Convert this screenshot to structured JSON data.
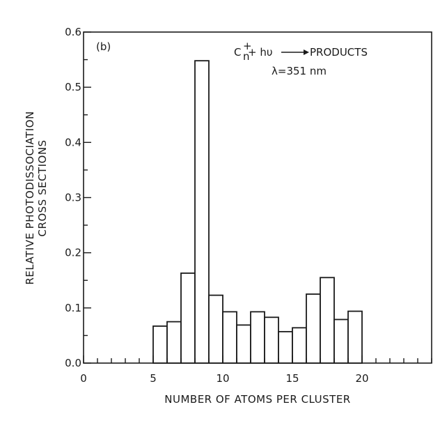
{
  "chart_data": {
    "type": "bar",
    "panel_label": "(b)",
    "xlabel": "NUMBER OF ATOMS PER CLUSTER",
    "ylabel_line1": "RELATIVE PHOTODISSOCIATION",
    "ylabel_line2": "CROSS SECTIONS",
    "annotation_reaction": "Cₙ⁺ + hυ → PRODUCTS",
    "annotation_reaction_lhs": "C",
    "annotation_reaction_sub": "n",
    "annotation_reaction_sup": "+",
    "annotation_reaction_mid": " + hυ ",
    "annotation_reaction_rhs": "PRODUCTS",
    "annotation_wavelength": "λ=351 nm",
    "xlim": [
      0,
      25
    ],
    "ylim": [
      0,
      0.6
    ],
    "x_ticks": [
      0,
      5,
      10,
      15,
      20
    ],
    "y_ticks": [
      0.0,
      0.1,
      0.2,
      0.3,
      0.4,
      0.5,
      0.6
    ],
    "y_tick_labels": [
      "0.0",
      "0.1",
      "0.2",
      "0.3",
      "0.4",
      "0.5",
      "0.6"
    ],
    "x_tick_labels": [
      "0",
      "5",
      "10",
      "15",
      "20"
    ],
    "grid": false,
    "x": [
      6,
      7,
      8,
      9,
      10,
      11,
      12,
      13,
      14,
      15,
      16,
      17,
      18,
      19,
      20
    ],
    "values": [
      0.067,
      0.075,
      0.163,
      0.548,
      0.123,
      0.093,
      0.069,
      0.093,
      0.083,
      0.057,
      0.064,
      0.125,
      0.155,
      0.079,
      0.094
    ]
  }
}
